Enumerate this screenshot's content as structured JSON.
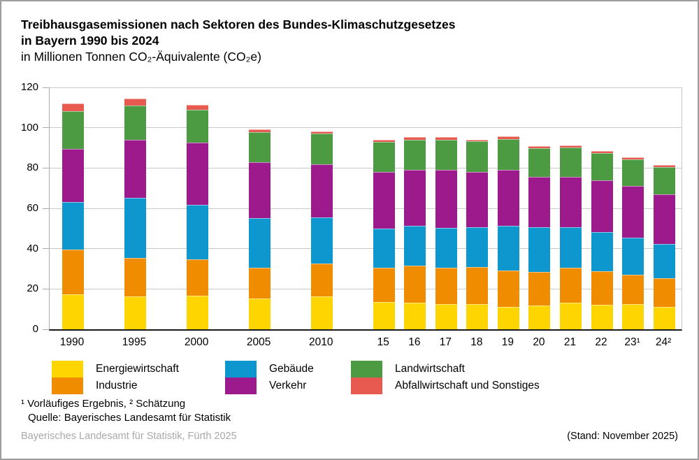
{
  "title": {
    "line1": "Treibhausgasemissionen nach Sektoren des Bundes-Klimaschutzgesetzes",
    "line2": "in Bayern 1990 bis 2024",
    "line3": "in Millionen Tonnen CO₂-Äquivalente (CO₂e)"
  },
  "chart_data": {
    "type": "bar",
    "stacked": true,
    "categories": [
      "1990",
      "1995",
      "2000",
      "2005",
      "2010",
      "15",
      "16",
      "17",
      "18",
      "19",
      "20",
      "21",
      "22",
      "23¹",
      "24²"
    ],
    "slots": [
      0,
      2,
      4,
      6,
      8,
      10,
      11,
      12,
      13,
      14,
      15,
      16,
      17,
      18,
      19
    ],
    "series": [
      {
        "name": "Energiewirtschaft",
        "color": "#FFD500",
        "values": [
          17.3,
          16.4,
          16.8,
          15.2,
          16.4,
          13.6,
          13.1,
          12.4,
          12.6,
          11.2,
          11.7,
          13.1,
          12.2,
          12.4,
          11.0
        ]
      },
      {
        "name": "Industrie",
        "color": "#F08C00",
        "values": [
          22.2,
          18.9,
          18.0,
          15.2,
          16.3,
          16.8,
          18.4,
          18.0,
          18.2,
          17.8,
          16.6,
          17.3,
          16.5,
          14.7,
          14.2
        ]
      },
      {
        "name": "Gebäude",
        "color": "#0E96CE",
        "values": [
          23.6,
          29.9,
          26.9,
          24.9,
          22.9,
          19.4,
          19.7,
          19.8,
          19.7,
          22.4,
          22.4,
          20.3,
          19.4,
          18.5,
          17.1
        ]
      },
      {
        "name": "Verkehr",
        "color": "#9C1A8C",
        "values": [
          26.4,
          28.9,
          30.8,
          27.5,
          26.2,
          28.2,
          28.0,
          29.0,
          27.5,
          27.6,
          24.8,
          25.0,
          25.7,
          25.4,
          24.5
        ]
      },
      {
        "name": "Landwirtschaft",
        "color": "#4C9B42",
        "values": [
          18.7,
          16.9,
          16.5,
          15.1,
          15.3,
          15.0,
          14.9,
          14.9,
          15.2,
          15.4,
          14.4,
          14.5,
          13.6,
          13.3,
          13.8
        ]
      },
      {
        "name": "Abfallwirtschaft und Sonstiges",
        "color": "#E85A50",
        "values": [
          3.9,
          3.5,
          2.2,
          1.4,
          0.9,
          1.1,
          1.4,
          1.2,
          0.9,
          1.2,
          1.0,
          0.9,
          0.9,
          1.0,
          0.9
        ]
      }
    ],
    "title": "Treibhausgasemissionen nach Sektoren des Bundes-Klimaschutzgesetzes in Bayern 1990 bis 2024",
    "ylabel": "in Millionen Tonnen CO₂-Äquivalente (CO₂e)",
    "xlabel": "",
    "ylim": [
      0,
      120
    ],
    "yticks": [
      0,
      20,
      40,
      60,
      80,
      100,
      120
    ],
    "grid": true,
    "legend_position": "bottom"
  },
  "footnotes": {
    "line1": "¹ Vorläufiges Ergebnis, ² Schätzung",
    "line2": "Quelle: Bayerisches Landesamt für Statistik"
  },
  "footer": {
    "left": "Bayerisches Landesamt für Statistik, Fürth 2025",
    "right": "(Stand: November 2025)"
  }
}
